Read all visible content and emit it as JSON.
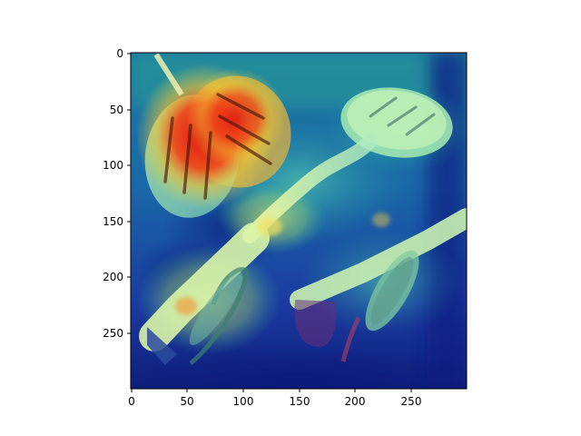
{
  "image": {
    "name": "heatmap-overlay-on-spatula-photo",
    "colormap": "jet"
  },
  "axes": {
    "x_ticks": [
      "0",
      "50",
      "100",
      "150",
      "200",
      "250"
    ],
    "y_ticks": [
      "0",
      "50",
      "100",
      "150",
      "200",
      "250"
    ],
    "x_range": [
      0,
      299
    ],
    "y_range": [
      0,
      299
    ]
  },
  "colors": {
    "axis": "#000000",
    "background": "#ffffff"
  }
}
